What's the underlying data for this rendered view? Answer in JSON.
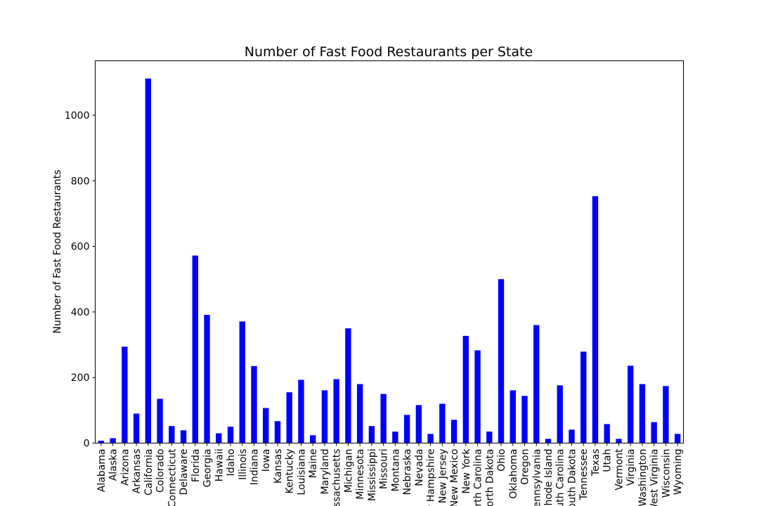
{
  "chart_data": {
    "type": "bar",
    "title": "Number of Fast Food Restaurants per State",
    "xlabel": "",
    "ylabel": "Number of Fast Food Restaurants",
    "ylim": [
      0,
      1166
    ],
    "yticks": [
      0,
      200,
      400,
      600,
      800,
      1000
    ],
    "bar_color": "#0000ff",
    "grid": false,
    "categories": [
      "Alabama",
      "Alaska",
      "Arizona",
      "Arkansas",
      "California",
      "Colorado",
      "Connecticut",
      "Delaware",
      "Florida",
      "Georgia",
      "Hawaii",
      "Idaho",
      "Illinois",
      "Indiana",
      "Iowa",
      "Kansas",
      "Kentucky",
      "Louisiana",
      "Maine",
      "Maryland",
      "Massachusetts",
      "Michigan",
      "Minnesota",
      "Mississippi",
      "Missouri",
      "Montana",
      "Nebraska",
      "Nevada",
      "New Hampshire",
      "New Jersey",
      "New Mexico",
      "New York",
      "North Carolina",
      "North Dakota",
      "Ohio",
      "Oklahoma",
      "Oregon",
      "Pennsylvania",
      "Rhode Island",
      "South Carolina",
      "South Dakota",
      "Tennessee",
      "Texas",
      "Utah",
      "Vermont",
      "Virginia",
      "Washington",
      "West Virginia",
      "Wisconsin",
      "Wyoming"
    ],
    "values": [
      7,
      15,
      294,
      90,
      1112,
      135,
      52,
      39,
      572,
      391,
      30,
      50,
      371,
      235,
      107,
      67,
      155,
      193,
      24,
      161,
      195,
      350,
      180,
      52,
      150,
      35,
      86,
      116,
      28,
      120,
      71,
      327,
      283,
      35,
      500,
      161,
      144,
      360,
      13,
      176,
      41,
      279,
      753,
      58,
      13,
      236,
      180,
      64,
      174,
      28
    ]
  }
}
